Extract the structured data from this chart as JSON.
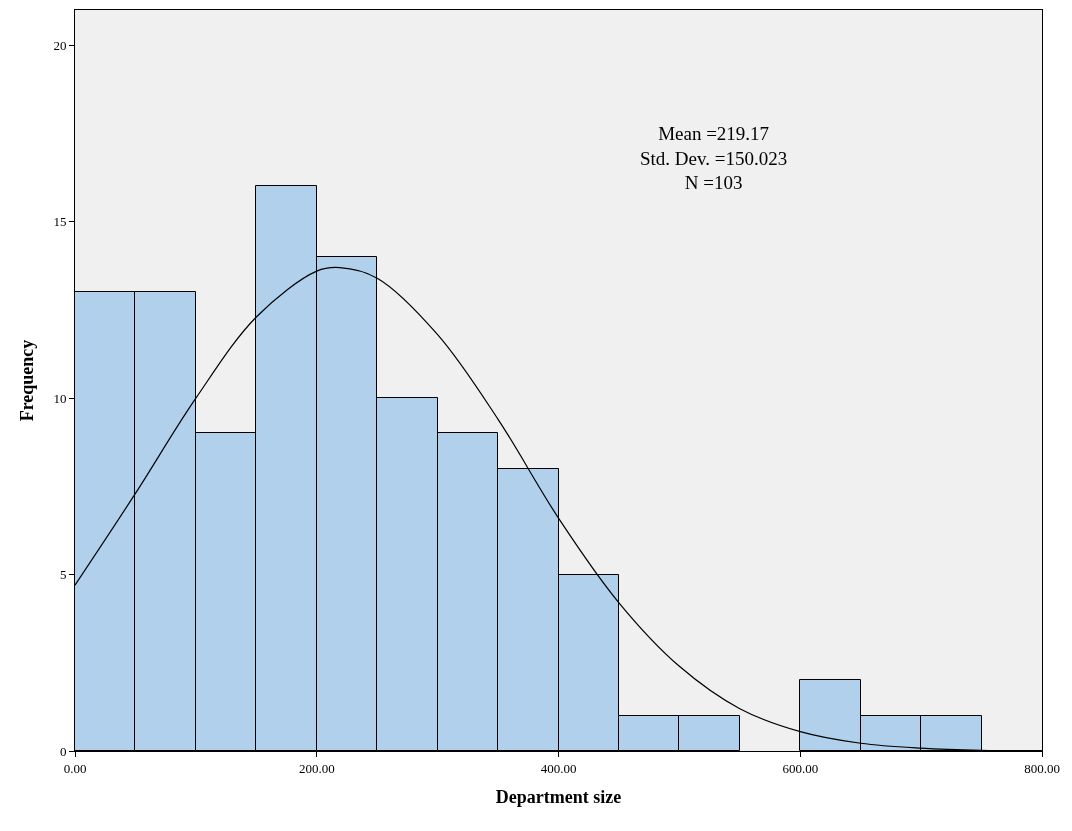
{
  "chart_data": {
    "type": "histogram",
    "xlabel": "Department size",
    "ylabel": "Frequency",
    "bins": [
      0,
      50,
      100,
      150,
      200,
      250,
      300,
      350,
      400,
      450,
      500,
      550,
      600,
      650,
      700,
      750
    ],
    "values": [
      13,
      13,
      9,
      16,
      14,
      10,
      9,
      8,
      5,
      1,
      1,
      0,
      2,
      1,
      1
    ],
    "color": "#b0d0ec",
    "series": [
      {
        "type": "line",
        "color": "#000000",
        "x": [
          0,
          50,
          100,
          150,
          200,
          219,
          250,
          300,
          350,
          400,
          450,
          500,
          550,
          600,
          650,
          700,
          750,
          800
        ],
        "values": [
          4.7,
          7.3,
          10.0,
          12.3,
          13.6,
          13.7,
          13.4,
          11.8,
          9.4,
          6.6,
          4.2,
          2.4,
          1.2,
          0.55,
          0.22,
          0.08,
          0.02,
          0.01
        ]
      }
    ],
    "annotations": [
      "Mean =219.17",
      "Std. Dev. =150.023",
      "N =103"
    ],
    "xlim": [
      0,
      800
    ],
    "xticks": [
      {
        "value": 0,
        "label": "0.00"
      },
      {
        "value": 200,
        "label": "200.00"
      },
      {
        "value": 400,
        "label": "400.00"
      },
      {
        "value": 600,
        "label": "600.00"
      },
      {
        "value": 800,
        "label": "800.00"
      }
    ],
    "ylim": [
      0,
      21
    ],
    "yticks": [
      0,
      5,
      10,
      15,
      20
    ],
    "grid": false
  }
}
